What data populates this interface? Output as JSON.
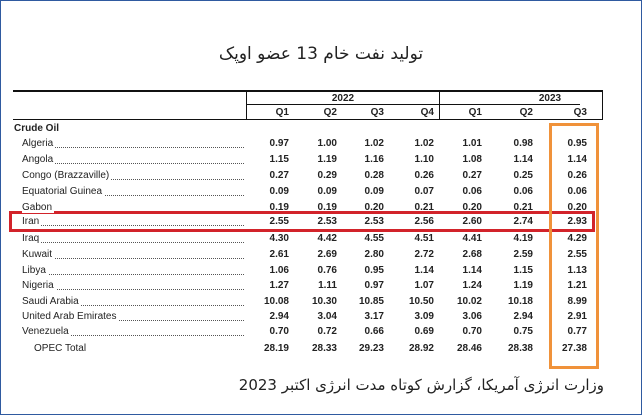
{
  "title": "تولید نفت خام 13 عضو اوپک",
  "footer": "وزارت انرژی آمریکا، گزارش کوتاه مدت انرژی اکتبر 2023",
  "colors": {
    "highlight_row": "#d2232a",
    "highlight_column": "#f0923a",
    "border": "#2f5aa0"
  },
  "table": {
    "years": [
      "2022",
      "2023"
    ],
    "quarters": [
      "Q1",
      "Q2",
      "Q3",
      "Q4",
      "Q1",
      "Q2",
      "Q3"
    ],
    "section": "Crude Oil",
    "rows": [
      {
        "country": "Algeria",
        "values": [
          "0.97",
          "1.00",
          "1.02",
          "1.02",
          "1.01",
          "0.98",
          "0.95"
        ]
      },
      {
        "country": "Angola",
        "values": [
          "1.15",
          "1.19",
          "1.16",
          "1.10",
          "1.08",
          "1.14",
          "1.14"
        ]
      },
      {
        "country": "Congo (Brazzaville)",
        "values": [
          "0.27",
          "0.29",
          "0.28",
          "0.26",
          "0.27",
          "0.25",
          "0.26"
        ]
      },
      {
        "country": "Equatorial Guinea",
        "values": [
          "0.09",
          "0.09",
          "0.09",
          "0.07",
          "0.06",
          "0.06",
          "0.06"
        ]
      },
      {
        "country": "Gabon",
        "values": [
          "0.19",
          "0.19",
          "0.20",
          "0.21",
          "0.20",
          "0.21",
          "0.20"
        ]
      },
      {
        "country": "Iran",
        "values": [
          "2.55",
          "2.53",
          "2.53",
          "2.56",
          "2.60",
          "2.74",
          "2.93"
        ]
      },
      {
        "country": "Iraq",
        "values": [
          "4.30",
          "4.42",
          "4.55",
          "4.51",
          "4.41",
          "4.19",
          "4.29"
        ]
      },
      {
        "country": "Kuwait",
        "values": [
          "2.61",
          "2.69",
          "2.80",
          "2.72",
          "2.68",
          "2.59",
          "2.55"
        ]
      },
      {
        "country": "Libya",
        "values": [
          "1.06",
          "0.76",
          "0.95",
          "1.14",
          "1.14",
          "1.15",
          "1.13"
        ]
      },
      {
        "country": "Nigeria",
        "values": [
          "1.27",
          "1.11",
          "0.97",
          "1.07",
          "1.24",
          "1.19",
          "1.21"
        ]
      },
      {
        "country": "Saudi Arabia",
        "values": [
          "10.08",
          "10.30",
          "10.85",
          "10.50",
          "10.02",
          "10.18",
          "8.99"
        ]
      },
      {
        "country": "United Arab Emirates",
        "values": [
          "2.94",
          "3.04",
          "3.17",
          "3.09",
          "3.06",
          "2.94",
          "2.91"
        ]
      },
      {
        "country": "Venezuela",
        "values": [
          "0.70",
          "0.72",
          "0.66",
          "0.69",
          "0.70",
          "0.75",
          "0.77"
        ]
      },
      {
        "country": "OPEC Total",
        "values": [
          "28.19",
          "28.33",
          "29.23",
          "28.92",
          "28.46",
          "28.38",
          "27.38"
        ]
      }
    ]
  }
}
